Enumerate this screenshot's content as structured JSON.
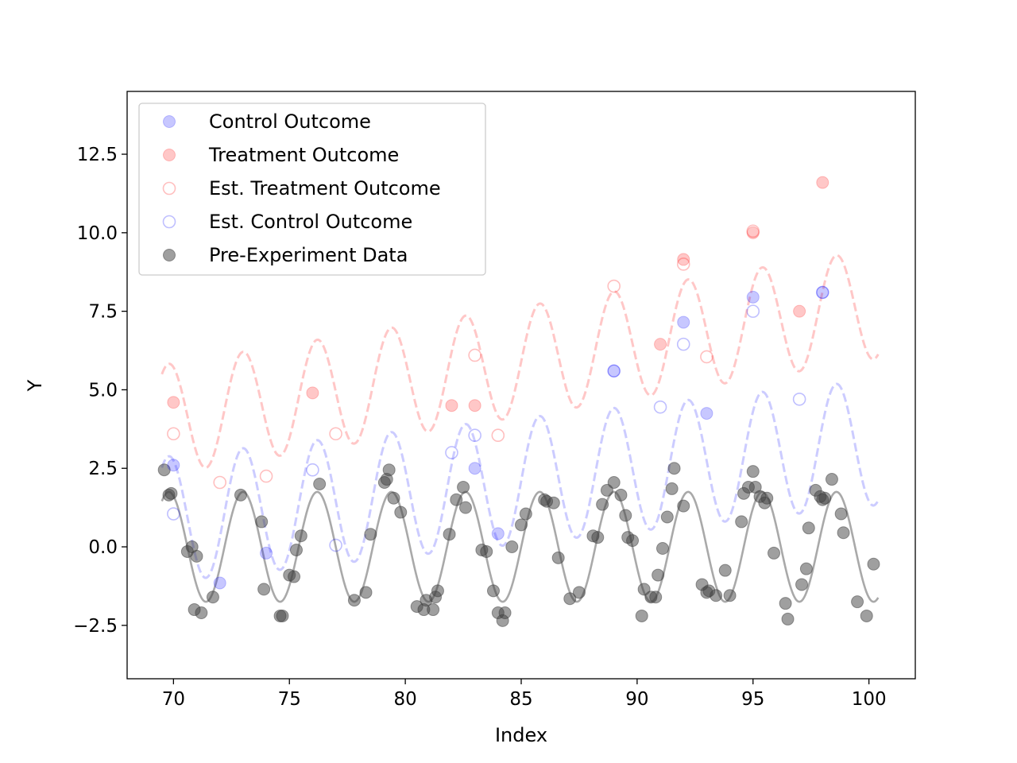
{
  "chart_data": {
    "type": "scatter",
    "title": "",
    "xlabel": "Index",
    "ylabel": "Y",
    "xlim": [
      68,
      102
    ],
    "ylim": [
      -4.2,
      14.5
    ],
    "xticks": [
      70,
      75,
      80,
      85,
      90,
      95,
      100
    ],
    "xtick_labels": [
      "70",
      "75",
      "80",
      "85",
      "90",
      "95",
      "100"
    ],
    "yticks": [
      -2.5,
      0.0,
      2.5,
      5.0,
      7.5,
      10.0,
      12.5
    ],
    "ytick_labels": [
      "−2.5",
      "0.0",
      "2.5",
      "5.0",
      "7.5",
      "10.0",
      "12.5"
    ],
    "grid": false,
    "legend_position": "top-left",
    "colors": {
      "control": "#0000ff",
      "treatment": "#ff0000",
      "pre": "#404040"
    },
    "legend": [
      {
        "label": "Control Outcome",
        "marker": "filled",
        "color": "#0000ff"
      },
      {
        "label": "Treatment Outcome",
        "marker": "filled",
        "color": "#ff0000"
      },
      {
        "label": "Est. Treatment Outcome",
        "marker": "hollow",
        "color": "#ff0000"
      },
      {
        "label": "Est. Control Outcome",
        "marker": "hollow",
        "color": "#0000ff"
      },
      {
        "label": "Pre-Experiment Data",
        "marker": "filled",
        "color": "#404040"
      }
    ],
    "lines": {
      "x_range": [
        69.5,
        100.4
      ],
      "season_period": 3.2,
      "season_phase_ref": 73.0,
      "pre_amplitude": 1.75,
      "pre_offset": 0.0,
      "control_est_offset": [
        0.75,
        0.08
      ],
      "treatment_est_offset": [
        2.4,
        0.12
      ],
      "control_est_amplitude": 2.0,
      "treatment_est_amplitude": 1.75
    },
    "series": [
      {
        "name": "Control Outcome",
        "style": "filled",
        "color": "#0000ff",
        "points": [
          [
            70,
            2.6
          ],
          [
            72,
            -1.15
          ],
          [
            74,
            -0.2
          ],
          [
            83,
            2.5
          ],
          [
            84,
            0.42
          ],
          [
            89,
            5.6
          ],
          [
            92,
            7.15
          ],
          [
            93,
            4.25
          ],
          [
            95,
            7.95
          ],
          [
            98,
            8.1
          ]
        ]
      },
      {
        "name": "Treatment Outcome",
        "style": "filled",
        "color": "#ff0000",
        "points": [
          [
            70,
            4.6
          ],
          [
            76,
            4.9
          ],
          [
            82,
            4.5
          ],
          [
            83,
            4.5
          ],
          [
            91,
            6.45
          ],
          [
            92,
            9.15
          ],
          [
            95,
            10.0
          ],
          [
            97,
            7.5
          ],
          [
            98,
            11.6
          ]
        ]
      },
      {
        "name": "Est. Treatment Outcome",
        "style": "hollow",
        "color": "#ff0000",
        "points": [
          [
            70,
            3.6
          ],
          [
            72,
            2.05
          ],
          [
            74,
            2.25
          ],
          [
            77,
            3.6
          ],
          [
            83,
            6.1
          ],
          [
            84,
            3.55
          ],
          [
            89,
            8.3
          ],
          [
            92,
            9.0
          ],
          [
            93,
            6.05
          ],
          [
            95,
            10.05
          ]
        ]
      },
      {
        "name": "Est. Control Outcome",
        "style": "hollow",
        "color": "#0000ff",
        "points": [
          [
            70,
            1.05
          ],
          [
            76,
            2.45
          ],
          [
            77,
            0.05
          ],
          [
            82,
            3.0
          ],
          [
            83,
            3.55
          ],
          [
            89,
            5.6
          ],
          [
            91,
            4.45
          ],
          [
            92,
            6.45
          ],
          [
            95,
            7.5
          ],
          [
            97,
            4.7
          ],
          [
            98,
            8.1
          ]
        ]
      },
      {
        "name": "Pre-Experiment Data",
        "style": "filled",
        "color": "#404040",
        "points": [
          [
            69.6,
            2.45
          ],
          [
            69.8,
            1.65
          ],
          [
            69.9,
            1.7
          ],
          [
            70.6,
            -0.15
          ],
          [
            70.8,
            0.0
          ],
          [
            70.9,
            -2.0
          ],
          [
            71.0,
            -0.3
          ],
          [
            71.2,
            -2.1
          ],
          [
            71.7,
            -1.6
          ],
          [
            72.9,
            1.65
          ],
          [
            73.8,
            0.8
          ],
          [
            73.9,
            -1.35
          ],
          [
            74.6,
            -2.2
          ],
          [
            74.7,
            -2.2
          ],
          [
            75.0,
            -0.9
          ],
          [
            75.2,
            -0.95
          ],
          [
            75.3,
            -0.1
          ],
          [
            75.5,
            0.35
          ],
          [
            76.3,
            2.0
          ],
          [
            77.8,
            -1.7
          ],
          [
            78.3,
            -1.45
          ],
          [
            78.5,
            0.4
          ],
          [
            79.1,
            2.05
          ],
          [
            79.2,
            2.15
          ],
          [
            79.3,
            2.45
          ],
          [
            79.5,
            1.55
          ],
          [
            79.8,
            1.1
          ],
          [
            80.5,
            -1.9
          ],
          [
            80.8,
            -2.0
          ],
          [
            80.9,
            -1.7
          ],
          [
            81.2,
            -2.0
          ],
          [
            81.3,
            -1.6
          ],
          [
            81.4,
            -1.4
          ],
          [
            81.9,
            0.4
          ],
          [
            82.2,
            1.5
          ],
          [
            82.5,
            1.9
          ],
          [
            82.6,
            1.25
          ],
          [
            83.3,
            -0.1
          ],
          [
            83.5,
            -0.15
          ],
          [
            83.8,
            -1.4
          ],
          [
            84.0,
            -2.1
          ],
          [
            84.2,
            -2.35
          ],
          [
            84.3,
            -2.1
          ],
          [
            84.6,
            0.0
          ],
          [
            85.0,
            0.7
          ],
          [
            85.2,
            1.05
          ],
          [
            86.0,
            1.5
          ],
          [
            86.1,
            1.45
          ],
          [
            86.4,
            1.4
          ],
          [
            86.6,
            -0.35
          ],
          [
            87.1,
            -1.65
          ],
          [
            87.5,
            -1.45
          ],
          [
            88.1,
            0.35
          ],
          [
            88.3,
            0.3
          ],
          [
            88.5,
            1.35
          ],
          [
            88.7,
            1.8
          ],
          [
            89.0,
            2.05
          ],
          [
            89.3,
            1.65
          ],
          [
            89.5,
            1.0
          ],
          [
            89.6,
            0.3
          ],
          [
            89.8,
            0.2
          ],
          [
            90.2,
            -2.2
          ],
          [
            90.3,
            -1.35
          ],
          [
            90.6,
            -1.6
          ],
          [
            90.8,
            -1.6
          ],
          [
            90.9,
            -0.9
          ],
          [
            91.1,
            -0.05
          ],
          [
            91.3,
            0.95
          ],
          [
            91.5,
            1.85
          ],
          [
            91.6,
            2.5
          ],
          [
            92.0,
            1.3
          ],
          [
            92.8,
            -1.2
          ],
          [
            93.0,
            -1.45
          ],
          [
            93.1,
            -1.4
          ],
          [
            93.4,
            -1.55
          ],
          [
            93.8,
            -0.75
          ],
          [
            94.0,
            -1.55
          ],
          [
            94.5,
            0.8
          ],
          [
            94.6,
            1.7
          ],
          [
            94.8,
            1.9
          ],
          [
            95.0,
            2.4
          ],
          [
            95.1,
            1.9
          ],
          [
            95.3,
            1.6
          ],
          [
            95.5,
            1.4
          ],
          [
            95.6,
            1.55
          ],
          [
            95.9,
            -0.2
          ],
          [
            96.4,
            -1.8
          ],
          [
            96.5,
            -2.3
          ],
          [
            97.1,
            -1.2
          ],
          [
            97.3,
            -0.7
          ],
          [
            97.4,
            0.6
          ],
          [
            97.7,
            1.8
          ],
          [
            97.9,
            1.6
          ],
          [
            98.0,
            1.5
          ],
          [
            98.1,
            1.55
          ],
          [
            98.4,
            2.15
          ],
          [
            98.8,
            1.05
          ],
          [
            98.9,
            0.45
          ],
          [
            99.5,
            -1.75
          ],
          [
            99.9,
            -2.2
          ],
          [
            100.2,
            -0.55
          ]
        ]
      }
    ]
  }
}
